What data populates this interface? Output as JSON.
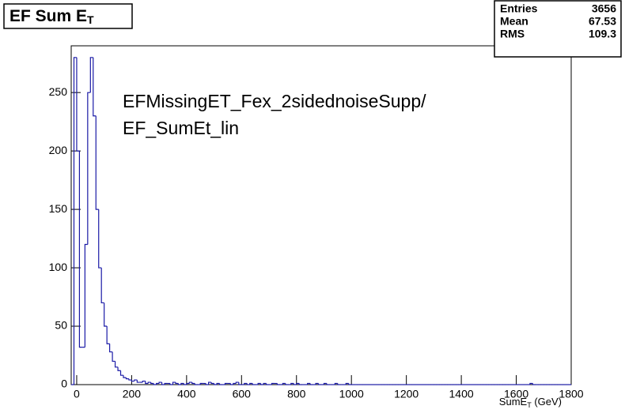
{
  "chart_data": {
    "type": "histogram",
    "title": [
      "EF Sum E",
      "T"
    ],
    "xlabel": [
      "SumE",
      "T",
      " (GeV)"
    ],
    "annotation": [
      "EFMissingET_Fex_2sidednoiseSupp/",
      "EF_SumEt_lin"
    ],
    "stats": [
      [
        "Entries",
        3656
      ],
      [
        "Mean",
        67.53
      ],
      [
        "RMS",
        109.3
      ]
    ],
    "color": "#1a1aa6",
    "xlim": [
      -20,
      1800
    ],
    "xticks": [
      0,
      200,
      400,
      600,
      800,
      1000,
      1200,
      1400,
      1600,
      1800
    ],
    "ylim": [
      0,
      290
    ],
    "yticks": [
      0,
      50,
      100,
      150,
      200,
      250
    ],
    "bins": [
      -20,
      -10,
      0,
      10,
      20,
      30,
      40,
      50,
      60,
      70,
      80,
      90,
      100,
      110,
      120,
      130,
      140,
      150,
      160,
      170,
      180,
      190,
      200,
      210,
      220,
      230,
      240,
      250,
      260,
      270,
      280,
      290,
      300,
      310,
      320,
      330,
      340,
      350,
      360,
      370,
      380,
      390,
      400,
      410,
      420,
      430,
      440,
      450,
      460,
      470,
      480,
      490,
      500,
      510,
      520,
      530,
      540,
      550,
      560,
      570,
      580,
      590,
      600,
      610,
      620,
      630,
      640,
      650,
      660,
      670,
      680,
      690,
      700,
      710,
      720,
      730,
      740,
      750,
      760,
      770,
      780,
      790,
      800,
      810,
      820,
      830,
      840,
      850,
      860,
      870,
      880,
      890,
      900,
      910,
      920,
      930,
      940,
      950,
      960,
      970,
      980,
      990,
      1000,
      1010,
      1020,
      1030,
      1040,
      1050,
      1060,
      1070,
      1080,
      1090,
      1100,
      1110,
      1120,
      1130,
      1140,
      1150,
      1160,
      1170,
      1180,
      1190,
      1200,
      1210,
      1220,
      1230,
      1240,
      1250,
      1260,
      1270,
      1280,
      1290,
      1300,
      1310,
      1320,
      1330,
      1340,
      1350,
      1360,
      1370,
      1380,
      1390,
      1400,
      1410,
      1420,
      1430,
      1440,
      1450,
      1460,
      1470,
      1480,
      1490,
      1500,
      1510,
      1520,
      1530,
      1540,
      1550,
      1560,
      1570,
      1580,
      1590,
      1600,
      1610,
      1620,
      1630,
      1640,
      1650,
      1660,
      1670,
      1680,
      1690,
      1700,
      1710,
      1720,
      1730,
      1740,
      1750,
      1760,
      1770,
      1780,
      1790,
      1800
    ],
    "values": [
      0,
      280,
      200,
      32,
      32,
      120,
      250,
      280,
      230,
      150,
      100,
      70,
      50,
      35,
      28,
      20,
      15,
      12,
      8,
      6,
      5,
      4,
      3,
      4,
      2,
      2,
      3,
      1,
      2,
      1,
      0,
      1,
      2,
      0,
      1,
      1,
      0,
      2,
      1,
      0,
      1,
      0,
      1,
      2,
      1,
      0,
      0,
      1,
      1,
      0,
      2,
      1,
      0,
      1,
      0,
      0,
      1,
      1,
      0,
      1,
      2,
      0,
      0,
      1,
      0,
      1,
      0,
      0,
      1,
      0,
      1,
      0,
      0,
      1,
      1,
      0,
      0,
      1,
      0,
      0,
      1,
      0,
      1,
      0,
      0,
      0,
      1,
      0,
      0,
      1,
      0,
      0,
      1,
      0,
      0,
      0,
      1,
      0,
      0,
      0,
      1,
      0,
      0,
      0,
      0,
      0,
      0,
      0,
      0,
      0,
      0,
      0,
      0,
      0,
      0,
      0,
      0,
      0,
      0,
      0,
      0,
      0,
      0,
      0,
      0,
      0,
      0,
      0,
      0,
      0,
      0,
      0,
      0,
      0,
      0,
      0,
      0,
      0,
      0,
      0,
      0,
      0,
      0,
      0,
      0,
      0,
      0,
      0,
      0,
      0,
      0,
      0,
      0,
      0,
      0,
      0,
      0,
      0,
      0,
      0,
      0,
      0,
      0,
      0,
      0,
      0,
      0,
      1,
      0,
      0,
      0,
      0,
      0,
      0,
      0,
      0,
      0,
      0,
      0,
      0,
      0,
      0
    ]
  }
}
